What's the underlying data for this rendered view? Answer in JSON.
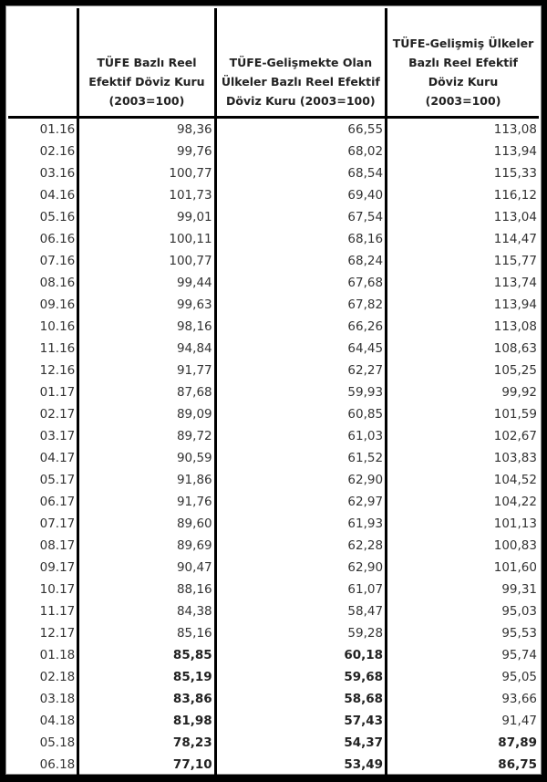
{
  "table": {
    "headers": [
      "",
      "TÜFE  Bazlı Reel Efektif Döviz Kuru (2003=100)",
      "TÜFE-Gelişmekte Olan Ülkeler Bazlı Reel Efektif Döviz Kuru (2003=100)",
      "TÜFE-Gelişmiş Ülkeler Bazlı Reel Efektif Döviz Kuru (2003=100)"
    ],
    "rows": [
      [
        "01.16",
        "98,36",
        "66,55",
        "113,08"
      ],
      [
        "02.16",
        "99,76",
        "68,02",
        "113,94"
      ],
      [
        "03.16",
        "100,77",
        "68,54",
        "115,33"
      ],
      [
        "04.16",
        "101,73",
        "69,40",
        "116,12"
      ],
      [
        "05.16",
        "99,01",
        "67,54",
        "113,04"
      ],
      [
        "06.16",
        "100,11",
        "68,16",
        "114,47"
      ],
      [
        "07.16",
        "100,77",
        "68,24",
        "115,77"
      ],
      [
        "08.16",
        "99,44",
        "67,68",
        "113,74"
      ],
      [
        "09.16",
        "99,63",
        "67,82",
        "113,94"
      ],
      [
        "10.16",
        "98,16",
        "66,26",
        "113,08"
      ],
      [
        "11.16",
        "94,84",
        "64,45",
        "108,63"
      ],
      [
        "12.16",
        "91,77",
        "62,27",
        "105,25"
      ],
      [
        "01.17",
        "87,68",
        "59,93",
        "99,92"
      ],
      [
        "02.17",
        "89,09",
        "60,85",
        "101,59"
      ],
      [
        "03.17",
        "89,72",
        "61,03",
        "102,67"
      ],
      [
        "04.17",
        "90,59",
        "61,52",
        "103,83"
      ],
      [
        "05.17",
        "91,86",
        "62,90",
        "104,52"
      ],
      [
        "06.17",
        "91,76",
        "62,97",
        "104,22"
      ],
      [
        "07.17",
        "89,60",
        "61,93",
        "101,13"
      ],
      [
        "08.17",
        "89,69",
        "62,28",
        "100,83"
      ],
      [
        "09.17",
        "90,47",
        "62,90",
        "101,60"
      ],
      [
        "10.17",
        "88,16",
        "61,07",
        "99,31"
      ],
      [
        "11.17",
        "84,38",
        "58,47",
        "95,03"
      ],
      [
        "12.17",
        "85,16",
        "59,28",
        "95,53"
      ],
      [
        "01.18",
        "85,85",
        "60,18",
        "95,74"
      ],
      [
        "02.18",
        "85,19",
        "59,68",
        "95,05"
      ],
      [
        "03.18",
        "83,86",
        "58,68",
        "93,66"
      ],
      [
        "04.18",
        "81,98",
        "57,43",
        "91,47"
      ],
      [
        "05.18",
        "78,23",
        "54,37",
        "87,89"
      ],
      [
        "06.18",
        "77,10",
        "53,49",
        "86,75"
      ]
    ]
  }
}
